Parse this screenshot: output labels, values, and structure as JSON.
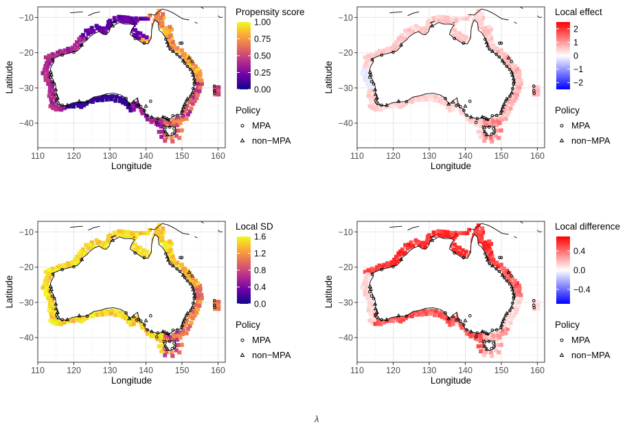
{
  "caption": "λ",
  "chart_data": [
    {
      "type": "heatmap",
      "panel": "top-left",
      "xlabel": "Longitude",
      "ylabel": "Latitude",
      "xlim": [
        110,
        162
      ],
      "ylim": [
        -47,
        -7
      ],
      "xticks": [
        110,
        120,
        130,
        140,
        150,
        160
      ],
      "yticks": [
        -10,
        -20,
        -30,
        -40
      ],
      "grid": true,
      "colorbar": {
        "title": "Propensity score",
        "ticks": [
          0.0,
          0.25,
          0.5,
          0.75,
          1.0
        ],
        "tick_labels": [
          "0.00",
          "0.25",
          "0.50",
          "0.75",
          "1.00"
        ],
        "range": [
          0,
          1
        ],
        "colors": [
          "#0d0887",
          "#6a00a8",
          "#b12a90",
          "#e16462",
          "#fca636",
          "#f0f921"
        ]
      },
      "legend": {
        "title": "Policy",
        "items": [
          "MPA",
          "non−MPA"
        ],
        "symbols": [
          "circle",
          "triangle"
        ]
      }
    },
    {
      "type": "heatmap",
      "panel": "top-right",
      "xlabel": "Longitude",
      "ylabel": "Latitude",
      "xlim": [
        110,
        162
      ],
      "ylim": [
        -47,
        -7
      ],
      "xticks": [
        110,
        120,
        130,
        140,
        150,
        160
      ],
      "yticks": [
        -10,
        -20,
        -30,
        -40
      ],
      "grid": true,
      "colorbar": {
        "title": "Local effect",
        "ticks": [
          2,
          1,
          0,
          -1,
          -2
        ],
        "tick_labels": [
          "2",
          "1",
          "0",
          "−1",
          "−2"
        ],
        "range": [
          -2.5,
          2.5
        ],
        "colors": [
          "#0000ff",
          "#ffffff",
          "#ff0000"
        ]
      },
      "legend": {
        "title": "Policy",
        "items": [
          "MPA",
          "non−MPA"
        ],
        "symbols": [
          "circle",
          "triangle"
        ]
      }
    },
    {
      "type": "heatmap",
      "panel": "bottom-left",
      "xlabel": "Longitude",
      "ylabel": "Latitude",
      "xlim": [
        110,
        162
      ],
      "ylim": [
        -47,
        -7
      ],
      "xticks": [
        110,
        120,
        130,
        140,
        150,
        160
      ],
      "yticks": [
        -10,
        -20,
        -30,
        -40
      ],
      "grid": true,
      "colorbar": {
        "title": "Local SD",
        "ticks": [
          1.6,
          1.2,
          0.8,
          0.4,
          0.0
        ],
        "tick_labels": [
          "1.6",
          "1.2",
          "0.8",
          "0.4",
          "0.0"
        ],
        "range": [
          0,
          1.6
        ],
        "colors": [
          "#0d0887",
          "#6a00a8",
          "#b12a90",
          "#e16462",
          "#fca636",
          "#f0f921"
        ]
      },
      "legend": {
        "title": "Policy",
        "items": [
          "MPA",
          "non−MPA"
        ],
        "symbols": [
          "circle",
          "triangle"
        ]
      }
    },
    {
      "type": "heatmap",
      "panel": "bottom-right",
      "xlabel": "Longitude",
      "ylabel": "Latitude",
      "xlim": [
        110,
        162
      ],
      "ylim": [
        -47,
        -7
      ],
      "xticks": [
        110,
        120,
        130,
        140,
        150,
        160
      ],
      "yticks": [
        -10,
        -20,
        -30,
        -40
      ],
      "grid": true,
      "colorbar": {
        "title": "Local difference",
        "ticks": [
          0.4,
          0.0,
          -0.4
        ],
        "tick_labels": [
          "0.4",
          "0.0",
          "−0.4"
        ],
        "range": [
          -0.7,
          0.7
        ],
        "colors": [
          "#0000ff",
          "#ffffff",
          "#ff0000"
        ]
      },
      "legend": {
        "title": "Policy",
        "items": [
          "MPA",
          "non−MPA"
        ],
        "symbols": [
          "circle",
          "triangle"
        ]
      }
    }
  ]
}
